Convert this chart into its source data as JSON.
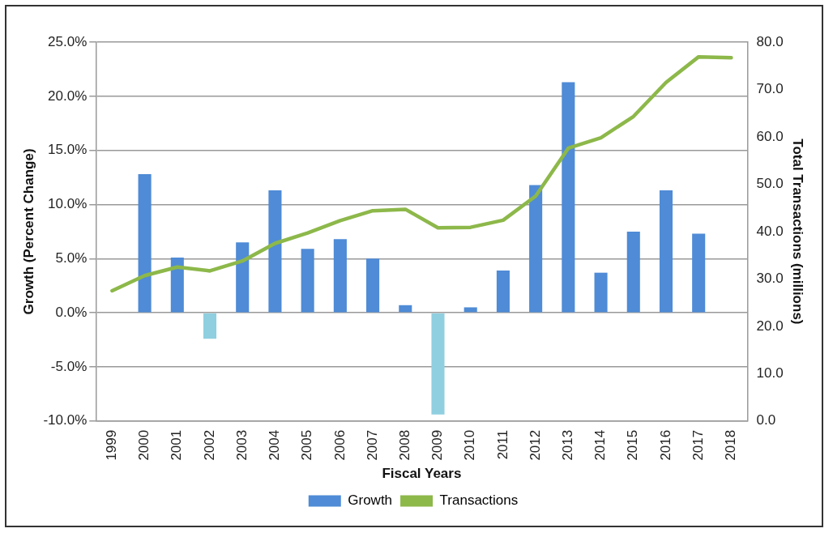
{
  "chart_data": {
    "type": "bar",
    "xlabel": "Fiscal Years",
    "ylabel": "Growth (Percent Change)",
    "y2label": "Total Transactions (millions)",
    "categories": [
      "1999",
      "2000",
      "2001",
      "2002",
      "2003",
      "2004",
      "2005",
      "2006",
      "2007",
      "2008",
      "2009",
      "2010",
      "2011",
      "2012",
      "2013",
      "2014",
      "2015",
      "2016",
      "2017",
      "2018"
    ],
    "series": [
      {
        "name": "Growth",
        "color": "#4f8bd6",
        "colors": [
          "#4f8bd6",
          "#4f8bd6",
          "#4f8bd6",
          "#8fcfe0",
          "#4f8bd6",
          "#4f8bd6",
          "#4f8bd6",
          "#4f8bd6",
          "#4f8bd6",
          "#4f8bd6",
          "#8fcfe0",
          "#4f8bd6",
          "#4f8bd6",
          "#4f8bd6",
          "#4f8bd6",
          "#4f8bd6",
          "#4f8bd6",
          "#4f8bd6",
          "#4f8bd6",
          "#4f8bd6"
        ],
        "values": [
          null,
          12.8,
          5.1,
          -2.4,
          6.5,
          11.3,
          5.9,
          6.8,
          5.0,
          0.7,
          -9.4,
          0.5,
          3.9,
          11.8,
          21.3,
          3.7,
          7.5,
          11.3,
          7.3,
          null
        ]
      },
      {
        "name": "Transactions",
        "type": "line",
        "axis": "y2",
        "color": "#8db84a",
        "values": [
          27.5,
          30.7,
          32.5,
          31.7,
          33.8,
          37.5,
          39.7,
          42.3,
          44.4,
          44.7,
          40.8,
          40.9,
          42.4,
          47.5,
          57.6,
          59.8,
          64.3,
          71.5,
          76.9,
          76.7
        ]
      }
    ],
    "ylim": [
      -10,
      25
    ],
    "yticks": [
      {
        "value": -10,
        "label": "-10.0%"
      },
      {
        "value": -5,
        "label": "-5.0%"
      },
      {
        "value": 0,
        "label": "0.0%"
      },
      {
        "value": 5,
        "label": "5.0%"
      },
      {
        "value": 10,
        "label": "10.0%"
      },
      {
        "value": 15,
        "label": "15.0%"
      },
      {
        "value": 20,
        "label": "20.0%"
      },
      {
        "value": 25,
        "label": "25.0%"
      }
    ],
    "y2lim": [
      0,
      80
    ],
    "y2ticks": [
      {
        "value": 0,
        "label": "0.0"
      },
      {
        "value": 10,
        "label": "10.0"
      },
      {
        "value": 20,
        "label": "20.0"
      },
      {
        "value": 30,
        "label": "30.0"
      },
      {
        "value": 40,
        "label": "40.0"
      },
      {
        "value": 50,
        "label": "50.0"
      },
      {
        "value": 60,
        "label": "60.0"
      },
      {
        "value": 70,
        "label": "70.0"
      },
      {
        "value": 80,
        "label": "80.0"
      }
    ],
    "grid": "y",
    "legend": "bottom",
    "marker": "none",
    "line_style": "solid"
  }
}
